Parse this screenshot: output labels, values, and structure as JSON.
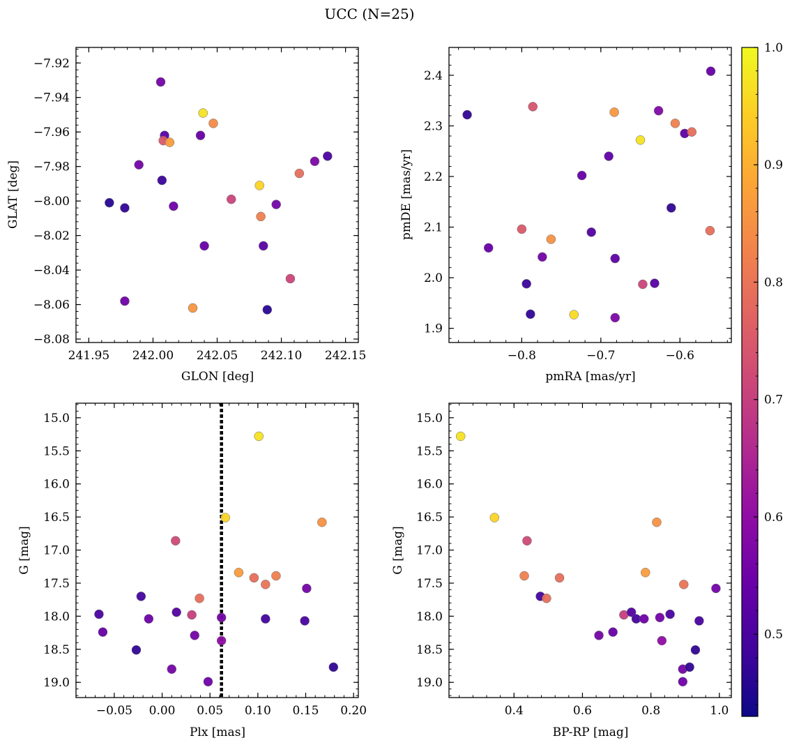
{
  "figure_title": "UCC (N=25)",
  "colormap": {
    "name": "plasma",
    "min": 0.43,
    "max": 1.0,
    "ticks": [
      0.5,
      0.6,
      0.7,
      0.8,
      0.9,
      1.0
    ],
    "tick_labels": [
      "0.5",
      "0.6",
      "0.7",
      "0.8",
      "0.9",
      "1.0"
    ]
  },
  "chart_data": [
    {
      "type": "scatter",
      "xlabel": "GLON [deg]",
      "ylabel": "GLAT [deg]",
      "xlim": [
        241.94,
        242.16
      ],
      "ylim": [
        -8.082,
        -7.911
      ],
      "invert_y": false,
      "xticks": [
        241.95,
        242.0,
        242.05,
        242.1,
        242.15
      ],
      "xtick_labels": [
        "241.95",
        "242.00",
        "242.05",
        "242.10",
        "242.15"
      ],
      "yticks": [
        -7.92,
        -7.94,
        -7.96,
        -7.98,
        -8.0,
        -8.02,
        -8.04,
        -8.06,
        -8.08
      ],
      "ytick_labels": [
        "−7.92",
        "−7.94",
        "−7.96",
        "−7.98",
        "−8.00",
        "−8.02",
        "−8.04",
        "−8.06",
        "−8.08"
      ],
      "points": [
        {
          "x": 241.966,
          "y": -8.001,
          "c": 0.46
        },
        {
          "x": 241.978,
          "y": -8.004,
          "c": 0.47
        },
        {
          "x": 241.978,
          "y": -8.058,
          "c": 0.55
        },
        {
          "x": 241.989,
          "y": -7.979,
          "c": 0.56
        },
        {
          "x": 242.006,
          "y": -7.931,
          "c": 0.56
        },
        {
          "x": 242.007,
          "y": -7.988,
          "c": 0.48
        },
        {
          "x": 242.009,
          "y": -7.962,
          "c": 0.52
        },
        {
          "x": 242.008,
          "y": -7.965,
          "c": 0.75
        },
        {
          "x": 242.013,
          "y": -7.966,
          "c": 0.87
        },
        {
          "x": 242.016,
          "y": -8.003,
          "c": 0.55
        },
        {
          "x": 242.031,
          "y": -8.062,
          "c": 0.86
        },
        {
          "x": 242.037,
          "y": -7.962,
          "c": 0.54
        },
        {
          "x": 242.039,
          "y": -7.949,
          "c": 0.97
        },
        {
          "x": 242.04,
          "y": -8.026,
          "c": 0.54
        },
        {
          "x": 242.047,
          "y": -7.955,
          "c": 0.84
        },
        {
          "x": 242.061,
          "y": -7.999,
          "c": 0.71
        },
        {
          "x": 242.083,
          "y": -7.991,
          "c": 0.95
        },
        {
          "x": 242.084,
          "y": -8.009,
          "c": 0.82
        },
        {
          "x": 242.086,
          "y": -8.026,
          "c": 0.52
        },
        {
          "x": 242.089,
          "y": -8.063,
          "c": 0.46
        },
        {
          "x": 242.096,
          "y": -8.002,
          "c": 0.56
        },
        {
          "x": 242.107,
          "y": -8.045,
          "c": 0.71
        },
        {
          "x": 242.114,
          "y": -7.984,
          "c": 0.79
        },
        {
          "x": 242.126,
          "y": -7.977,
          "c": 0.57
        },
        {
          "x": 242.136,
          "y": -7.974,
          "c": 0.5
        }
      ]
    },
    {
      "type": "scatter",
      "xlabel": "pmRA [mas/yr]",
      "ylabel": "pmDE [mas/yr]",
      "xlim": [
        -0.892,
        -0.535
      ],
      "ylim": [
        1.872,
        2.455
      ],
      "invert_y": false,
      "xticks": [
        -0.8,
        -0.7,
        -0.6
      ],
      "xtick_labels": [
        "−0.8",
        "−0.7",
        "−0.6"
      ],
      "yticks": [
        1.9,
        2.0,
        2.1,
        2.2,
        2.3,
        2.4
      ],
      "ytick_labels": [
        "1.9",
        "2.0",
        "2.1",
        "2.2",
        "2.3",
        "2.4"
      ],
      "points": [
        {
          "x": -0.869,
          "y": 2.322,
          "c": 0.47
        },
        {
          "x": -0.842,
          "y": 2.059,
          "c": 0.54
        },
        {
          "x": -0.8,
          "y": 2.096,
          "c": 0.75
        },
        {
          "x": -0.794,
          "y": 1.988,
          "c": 0.48
        },
        {
          "x": -0.789,
          "y": 1.928,
          "c": 0.47
        },
        {
          "x": -0.786,
          "y": 2.338,
          "c": 0.74
        },
        {
          "x": -0.763,
          "y": 2.076,
          "c": 0.85
        },
        {
          "x": -0.774,
          "y": 2.041,
          "c": 0.56
        },
        {
          "x": -0.734,
          "y": 1.927,
          "c": 0.96
        },
        {
          "x": -0.724,
          "y": 2.202,
          "c": 0.54
        },
        {
          "x": -0.712,
          "y": 2.09,
          "c": 0.51
        },
        {
          "x": -0.69,
          "y": 2.24,
          "c": 0.53
        },
        {
          "x": -0.683,
          "y": 2.327,
          "c": 0.86
        },
        {
          "x": -0.682,
          "y": 2.038,
          "c": 0.53
        },
        {
          "x": -0.682,
          "y": 1.921,
          "c": 0.57
        },
        {
          "x": -0.65,
          "y": 2.272,
          "c": 0.97
        },
        {
          "x": -0.647,
          "y": 1.987,
          "c": 0.71
        },
        {
          "x": -0.632,
          "y": 1.989,
          "c": 0.52
        },
        {
          "x": -0.627,
          "y": 2.33,
          "c": 0.58
        },
        {
          "x": -0.611,
          "y": 2.138,
          "c": 0.47
        },
        {
          "x": -0.606,
          "y": 2.305,
          "c": 0.82
        },
        {
          "x": -0.594,
          "y": 2.285,
          "c": 0.53
        },
        {
          "x": -0.585,
          "y": 2.288,
          "c": 0.79
        },
        {
          "x": -0.561,
          "y": 2.408,
          "c": 0.54
        },
        {
          "x": -0.562,
          "y": 2.093,
          "c": 0.79
        }
      ]
    },
    {
      "type": "scatter",
      "xlabel": "Plx [mas]",
      "ylabel": "G [mag]",
      "xlim": [
        -0.09,
        0.205
      ],
      "ylim": [
        14.78,
        19.23
      ],
      "invert_y": true,
      "vline": 0.062,
      "xticks": [
        -0.05,
        0.0,
        0.05,
        0.1,
        0.15,
        0.2
      ],
      "xtick_labels": [
        "−0.05",
        "0.00",
        "0.05",
        "0.10",
        "0.15",
        "0.20"
      ],
      "yticks": [
        15.0,
        15.5,
        16.0,
        16.5,
        17.0,
        17.5,
        18.0,
        18.5,
        19.0
      ],
      "ytick_labels": [
        "15.0",
        "15.5",
        "16.0",
        "16.5",
        "17.0",
        "17.5",
        "18.0",
        "18.5",
        "19.0"
      ],
      "points": [
        {
          "x": 0.101,
          "y": 15.28,
          "c": 0.97
        },
        {
          "x": 0.066,
          "y": 16.51,
          "c": 0.95
        },
        {
          "x": 0.167,
          "y": 16.58,
          "c": 0.85
        },
        {
          "x": 0.014,
          "y": 16.86,
          "c": 0.72
        },
        {
          "x": 0.08,
          "y": 17.34,
          "c": 0.87
        },
        {
          "x": 0.096,
          "y": 17.42,
          "c": 0.79
        },
        {
          "x": 0.119,
          "y": 17.39,
          "c": 0.82
        },
        {
          "x": 0.108,
          "y": 17.52,
          "c": 0.8
        },
        {
          "x": 0.151,
          "y": 17.58,
          "c": 0.56
        },
        {
          "x": -0.022,
          "y": 17.7,
          "c": 0.49
        },
        {
          "x": 0.039,
          "y": 17.73,
          "c": 0.79
        },
        {
          "x": -0.066,
          "y": 17.97,
          "c": 0.5
        },
        {
          "x": 0.015,
          "y": 17.94,
          "c": 0.51
        },
        {
          "x": 0.031,
          "y": 17.98,
          "c": 0.7
        },
        {
          "x": -0.014,
          "y": 18.04,
          "c": 0.55
        },
        {
          "x": 0.062,
          "y": 18.02,
          "c": 0.56
        },
        {
          "x": 0.108,
          "y": 18.04,
          "c": 0.49
        },
        {
          "x": 0.149,
          "y": 18.07,
          "c": 0.5
        },
        {
          "x": -0.062,
          "y": 18.24,
          "c": 0.54
        },
        {
          "x": 0.034,
          "y": 18.29,
          "c": 0.56
        },
        {
          "x": 0.062,
          "y": 18.37,
          "c": 0.6
        },
        {
          "x": -0.027,
          "y": 18.51,
          "c": 0.47
        },
        {
          "x": 0.179,
          "y": 18.77,
          "c": 0.47
        },
        {
          "x": 0.01,
          "y": 18.8,
          "c": 0.56
        },
        {
          "x": 0.048,
          "y": 18.99,
          "c": 0.55
        }
      ]
    },
    {
      "type": "scatter",
      "xlabel": "BP-RP [mag]",
      "ylabel": "G [mag]",
      "xlim": [
        0.21,
        1.035
      ],
      "ylim": [
        14.78,
        19.23
      ],
      "invert_y": true,
      "xticks": [
        0.4,
        0.6,
        0.8,
        1.0
      ],
      "xtick_labels": [
        "0.4",
        "0.6",
        "0.8",
        "1.0"
      ],
      "yticks": [
        15.0,
        15.5,
        16.0,
        16.5,
        17.0,
        17.5,
        18.0,
        18.5,
        19.0
      ],
      "ytick_labels": [
        "15.0",
        "15.5",
        "16.0",
        "16.5",
        "17.0",
        "17.5",
        "18.0",
        "18.5",
        "19.0"
      ],
      "points": [
        {
          "x": 0.244,
          "y": 15.28,
          "c": 0.97
        },
        {
          "x": 0.343,
          "y": 16.51,
          "c": 0.95
        },
        {
          "x": 0.438,
          "y": 16.86,
          "c": 0.72
        },
        {
          "x": 0.817,
          "y": 16.58,
          "c": 0.85
        },
        {
          "x": 0.43,
          "y": 17.39,
          "c": 0.82
        },
        {
          "x": 0.533,
          "y": 17.42,
          "c": 0.79
        },
        {
          "x": 0.784,
          "y": 17.34,
          "c": 0.87
        },
        {
          "x": 0.896,
          "y": 17.52,
          "c": 0.8
        },
        {
          "x": 0.99,
          "y": 17.58,
          "c": 0.56
        },
        {
          "x": 0.477,
          "y": 17.7,
          "c": 0.49
        },
        {
          "x": 0.495,
          "y": 17.73,
          "c": 0.79
        },
        {
          "x": 0.721,
          "y": 17.98,
          "c": 0.7
        },
        {
          "x": 0.743,
          "y": 17.94,
          "c": 0.51
        },
        {
          "x": 0.757,
          "y": 18.04,
          "c": 0.49
        },
        {
          "x": 0.78,
          "y": 18.04,
          "c": 0.55
        },
        {
          "x": 0.826,
          "y": 18.02,
          "c": 0.56
        },
        {
          "x": 0.856,
          "y": 17.97,
          "c": 0.5
        },
        {
          "x": 0.941,
          "y": 18.07,
          "c": 0.5
        },
        {
          "x": 0.648,
          "y": 18.29,
          "c": 0.56
        },
        {
          "x": 0.689,
          "y": 18.24,
          "c": 0.54
        },
        {
          "x": 0.832,
          "y": 18.37,
          "c": 0.6
        },
        {
          "x": 0.93,
          "y": 18.51,
          "c": 0.47
        },
        {
          "x": 0.893,
          "y": 18.8,
          "c": 0.56
        },
        {
          "x": 0.913,
          "y": 18.77,
          "c": 0.47
        },
        {
          "x": 0.893,
          "y": 18.99,
          "c": 0.55
        }
      ]
    }
  ]
}
